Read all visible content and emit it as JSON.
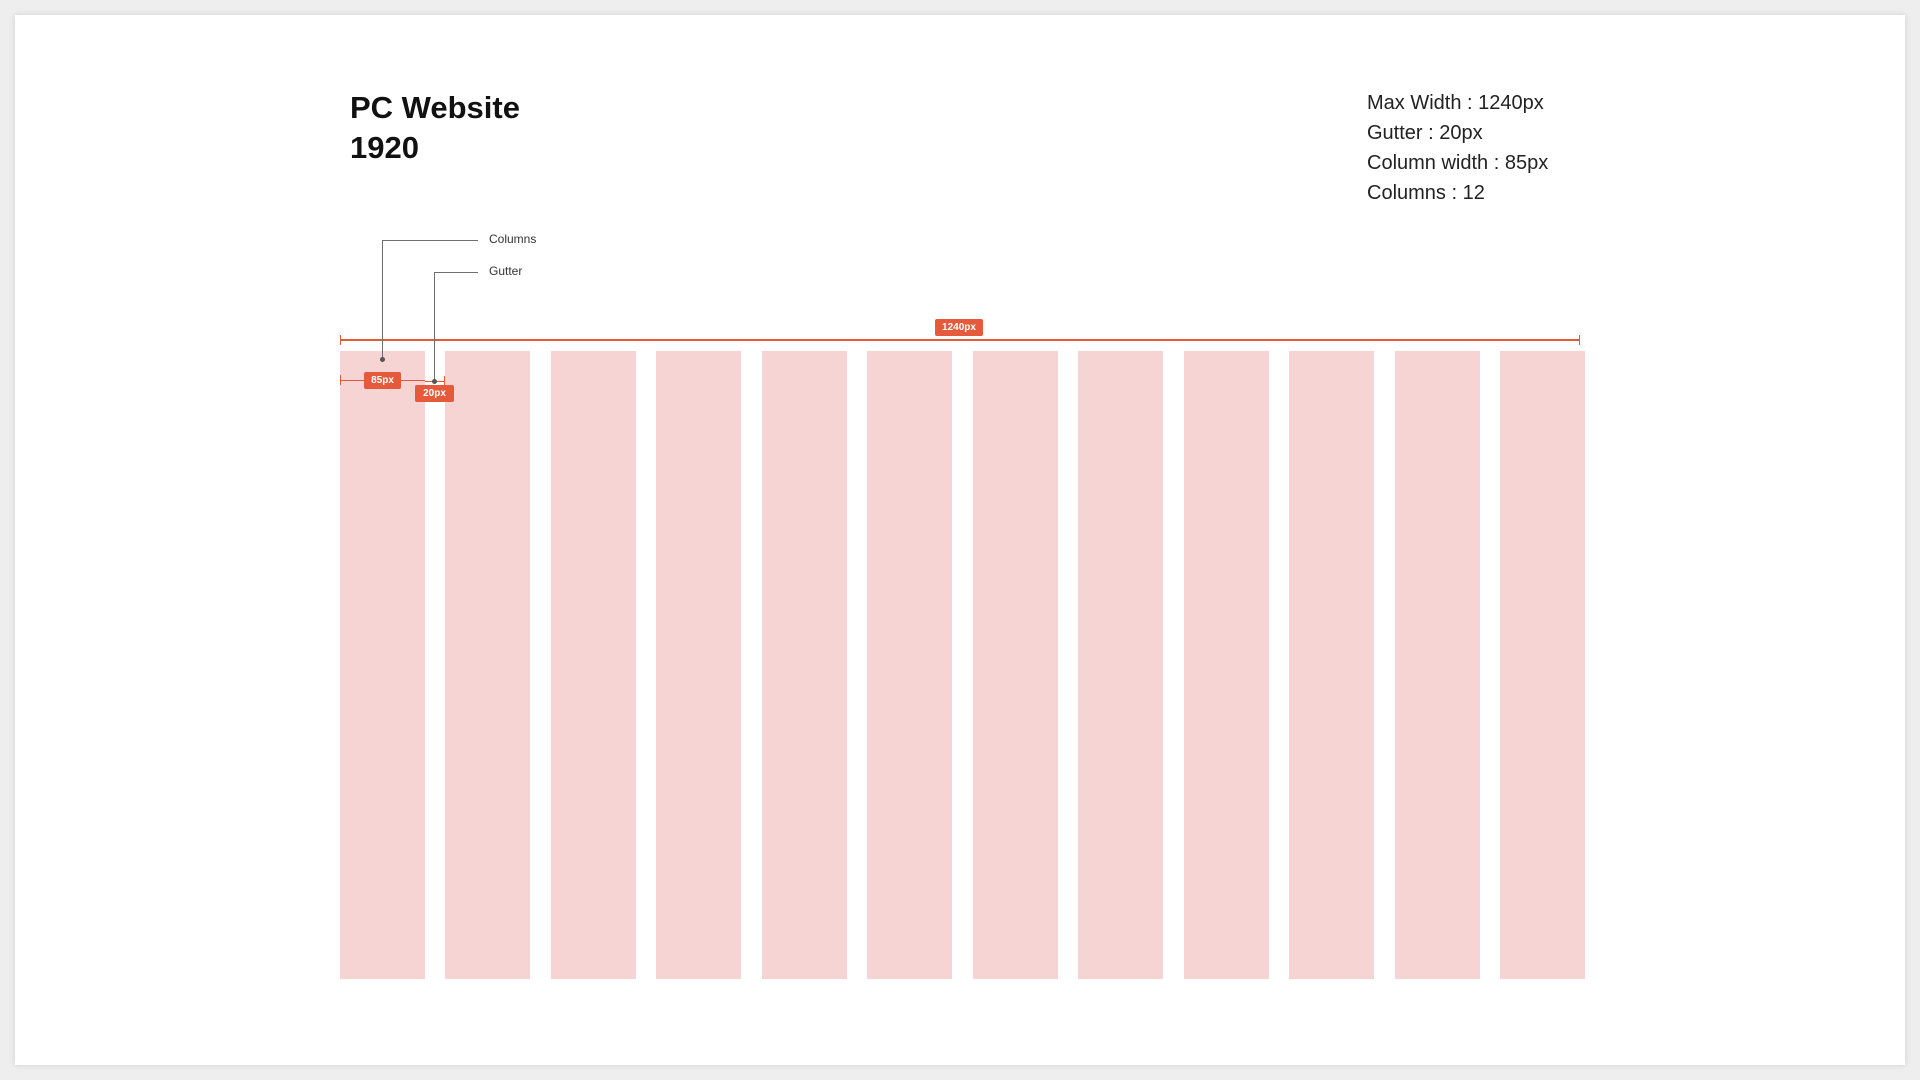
{
  "title": {
    "line1": "PC Website",
    "line2": "1920"
  },
  "specs": [
    "Max Width : 1240px",
    "Gutter : 20px",
    "Column width : 85px",
    "Columns : 12"
  ],
  "callouts": {
    "columns": "Columns",
    "gutter": "Gutter"
  },
  "dimensions": {
    "total": "1240px",
    "column": "85px",
    "gutter": "20px"
  },
  "columns_count": 12,
  "colors": {
    "column": "#f5d4d3",
    "accent": "#e65a3c",
    "board": "#ffffff"
  }
}
